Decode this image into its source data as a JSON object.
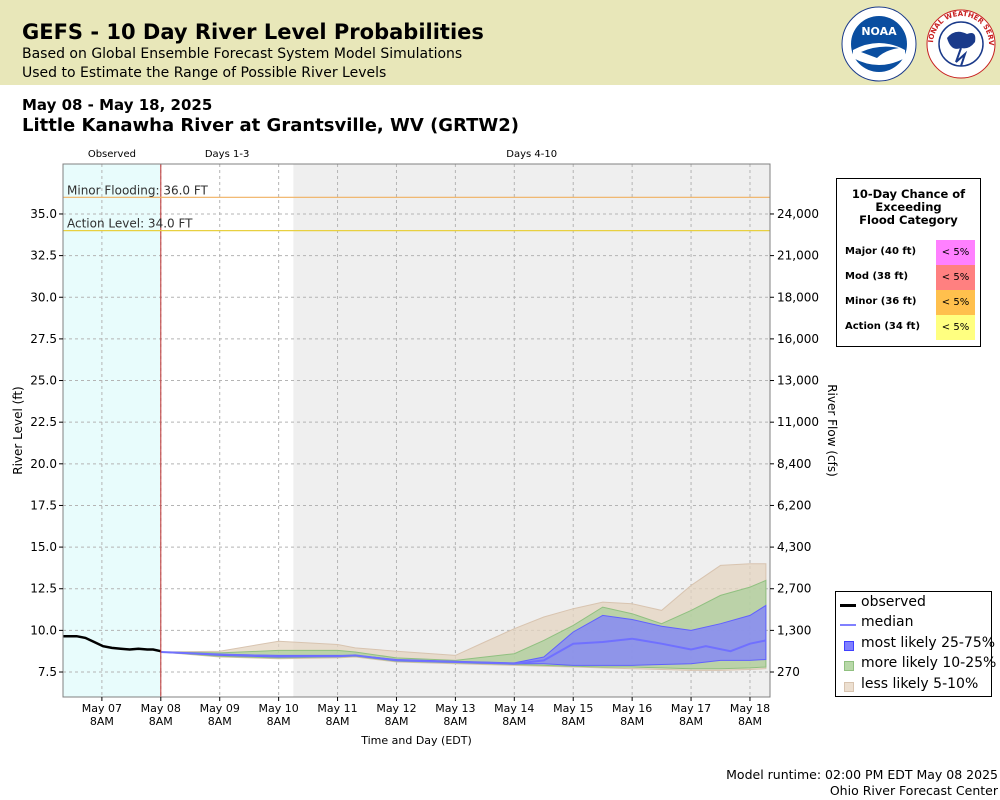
{
  "header": {
    "title": "GEFS - 10 Day River Level Probabilities",
    "subtitle1": "Based on Global Ensemble Forecast System Model Simulations",
    "subtitle2": "Used to Estimate the Range of Possible River Levels",
    "noaa_logo_text": "NOAA",
    "nws_logo_text": "NATIONAL WEATHER SERVICE"
  },
  "date_range": "May 08 - May 18, 2025",
  "station": "Little Kanawha River at Grantsville, WV (GRTW2)",
  "footer": {
    "runtime": "Model runtime: 02:00 PM EDT May 08 2025",
    "center": "Ohio River Forecast Center"
  },
  "flood_table": {
    "title": "10-Day Chance of\nExceeding\nFlood Category",
    "rows": [
      {
        "label": "Major (40 ft)",
        "value": "< 5%",
        "color": "#ff80ff"
      },
      {
        "label": "Mod (38 ft)",
        "value": "< 5%",
        "color": "#ff8080"
      },
      {
        "label": "Minor (36 ft)",
        "value": "< 5%",
        "color": "#ffc04d"
      },
      {
        "label": "Action (34 ft)",
        "value": "< 5%",
        "color": "#ffff80"
      }
    ]
  },
  "legend": [
    {
      "label": "observed",
      "type": "line",
      "color": "#000000"
    },
    {
      "label": "median",
      "type": "line",
      "color": "#8080ff"
    },
    {
      "label": "most likely 25-75%",
      "type": "box",
      "color": "#8080ff",
      "border": "#4040ff"
    },
    {
      "label": "more likely 10-25%",
      "type": "box",
      "color": "#b8d8a8",
      "border": "#90c080"
    },
    {
      "label": "less likely 5-10%",
      "type": "box",
      "color": "#ecdfd0",
      "border": "#d8c4b0"
    }
  ],
  "chart_data": {
    "type": "area",
    "xlabel": "Time and Day (EDT)",
    "ylabel": "River Level (ft)",
    "y2label": "River Flow (cfs)",
    "x_unit": "days after May 07 00:00 EDT",
    "xlim": [
      -0.33,
      11.67
    ],
    "ylim": [
      6.0,
      38.0
    ],
    "grid": true,
    "legend_position": "bottom-right",
    "forecast_start": 1.33,
    "days_4_10_start": 3.58,
    "regions": [
      {
        "label": "Observed",
        "from": -0.33,
        "to": 1.33,
        "color": "#e8fcfc"
      },
      {
        "label": "Days 1-3",
        "from": 1.33,
        "to": 3.58,
        "color": "#ffffff"
      },
      {
        "label": "Days 4-10",
        "from": 3.58,
        "to": 11.67,
        "color": "#efefef"
      }
    ],
    "thresholds": [
      {
        "label": "Minor Flooding: 36.0 FT",
        "value": 36.0,
        "color": "#f0b060"
      },
      {
        "label": "Action Level: 34.0 FT",
        "value": 34.0,
        "color": "#e8d040"
      }
    ],
    "yticks": [
      7.5,
      10.0,
      12.5,
      15.0,
      17.5,
      20.0,
      22.5,
      25.0,
      27.5,
      30.0,
      32.5,
      35.0
    ],
    "ytick_labels": [
      "7.5",
      "10.0",
      "12.5",
      "15.0",
      "17.5",
      "20.0",
      "22.5",
      "25.0",
      "27.5",
      "30.0",
      "32.5",
      "35.0"
    ],
    "y2ticks": [
      {
        "stage": 7.5,
        "label": "270"
      },
      {
        "stage": 10.0,
        "label": "1,300"
      },
      {
        "stage": 12.5,
        "label": "2,700"
      },
      {
        "stage": 15.0,
        "label": "4,300"
      },
      {
        "stage": 17.5,
        "label": "6,200"
      },
      {
        "stage": 20.0,
        "label": "8,400"
      },
      {
        "stage": 22.5,
        "label": "11,000"
      },
      {
        "stage": 25.0,
        "label": "13,000"
      },
      {
        "stage": 27.5,
        "label": "16,000"
      },
      {
        "stage": 30.0,
        "label": "18,000"
      },
      {
        "stage": 32.5,
        "label": "21,000"
      },
      {
        "stage": 35.0,
        "label": "24,000"
      }
    ],
    "xticks": [
      {
        "x": 0.33,
        "day": "May 07",
        "time": "8AM"
      },
      {
        "x": 1.33,
        "day": "May 08",
        "time": "8AM"
      },
      {
        "x": 2.33,
        "day": "May 09",
        "time": "8AM"
      },
      {
        "x": 3.33,
        "day": "May 10",
        "time": "8AM"
      },
      {
        "x": 4.33,
        "day": "May 11",
        "time": "8AM"
      },
      {
        "x": 5.33,
        "day": "May 12",
        "time": "8AM"
      },
      {
        "x": 6.33,
        "day": "May 13",
        "time": "8AM"
      },
      {
        "x": 7.33,
        "day": "May 14",
        "time": "8AM"
      },
      {
        "x": 8.33,
        "day": "May 15",
        "time": "8AM"
      },
      {
        "x": 9.33,
        "day": "May 16",
        "time": "8AM"
      },
      {
        "x": 10.33,
        "day": "May 17",
        "time": "8AM"
      },
      {
        "x": 11.33,
        "day": "May 18",
        "time": "8AM"
      }
    ],
    "observed": [
      [
        -0.33,
        9.65
      ],
      [
        -0.1,
        9.65
      ],
      [
        0.05,
        9.55
      ],
      [
        0.2,
        9.3
      ],
      [
        0.35,
        9.05
      ],
      [
        0.5,
        8.95
      ],
      [
        0.65,
        8.9
      ],
      [
        0.8,
        8.85
      ],
      [
        0.95,
        8.9
      ],
      [
        1.1,
        8.85
      ],
      [
        1.2,
        8.85
      ],
      [
        1.33,
        8.75
      ]
    ],
    "median": [
      [
        1.33,
        8.7
      ],
      [
        2.33,
        8.55
      ],
      [
        3.33,
        8.45
      ],
      [
        4.33,
        8.45
      ],
      [
        4.63,
        8.5
      ],
      [
        5.33,
        8.2
      ],
      [
        6.33,
        8.1
      ],
      [
        7.33,
        8.0
      ],
      [
        7.83,
        8.2
      ],
      [
        8.33,
        9.2
      ],
      [
        8.83,
        9.3
      ],
      [
        9.33,
        9.5
      ],
      [
        9.83,
        9.2
      ],
      [
        10.33,
        8.85
      ],
      [
        10.58,
        9.05
      ],
      [
        11.0,
        8.75
      ],
      [
        11.33,
        9.2
      ],
      [
        11.6,
        9.4
      ]
    ],
    "band_25_75": {
      "lower": [
        [
          1.33,
          8.7
        ],
        [
          2.33,
          8.5
        ],
        [
          3.33,
          8.4
        ],
        [
          4.33,
          8.45
        ],
        [
          4.63,
          8.5
        ],
        [
          5.33,
          8.2
        ],
        [
          6.33,
          8.1
        ],
        [
          7.33,
          8.0
        ],
        [
          7.83,
          8.0
        ],
        [
          8.33,
          7.9
        ],
        [
          8.83,
          7.9
        ],
        [
          9.33,
          7.9
        ],
        [
          9.83,
          7.95
        ],
        [
          10.33,
          8.0
        ],
        [
          10.83,
          8.2
        ],
        [
          11.33,
          8.2
        ],
        [
          11.6,
          8.25
        ]
      ],
      "upper": [
        [
          1.33,
          8.7
        ],
        [
          2.33,
          8.55
        ],
        [
          3.33,
          8.5
        ],
        [
          4.33,
          8.5
        ],
        [
          4.63,
          8.5
        ],
        [
          5.33,
          8.25
        ],
        [
          6.33,
          8.15
        ],
        [
          7.33,
          8.05
        ],
        [
          7.83,
          8.4
        ],
        [
          8.33,
          9.9
        ],
        [
          8.83,
          10.9
        ],
        [
          9.33,
          10.65
        ],
        [
          9.83,
          10.25
        ],
        [
          10.33,
          10.0
        ],
        [
          10.83,
          10.4
        ],
        [
          11.33,
          10.9
        ],
        [
          11.6,
          11.5
        ]
      ]
    },
    "band_10_25": {
      "lower": [
        [
          1.33,
          8.7
        ],
        [
          2.33,
          8.45
        ],
        [
          3.33,
          8.35
        ],
        [
          4.33,
          8.4
        ],
        [
          4.63,
          8.45
        ],
        [
          5.33,
          8.15
        ],
        [
          6.33,
          8.05
        ],
        [
          7.33,
          7.95
        ],
        [
          7.83,
          7.9
        ],
        [
          8.33,
          7.85
        ],
        [
          8.83,
          7.8
        ],
        [
          9.33,
          7.8
        ],
        [
          9.83,
          7.75
        ],
        [
          10.33,
          7.7
        ],
        [
          10.83,
          7.7
        ],
        [
          11.33,
          7.75
        ],
        [
          11.6,
          7.8
        ]
      ],
      "upper": [
        [
          1.33,
          8.7
        ],
        [
          2.33,
          8.65
        ],
        [
          3.33,
          8.8
        ],
        [
          4.33,
          8.8
        ],
        [
          4.63,
          8.7
        ],
        [
          5.33,
          8.35
        ],
        [
          6.33,
          8.2
        ],
        [
          7.33,
          8.6
        ],
        [
          7.83,
          9.4
        ],
        [
          8.33,
          10.3
        ],
        [
          8.83,
          11.4
        ],
        [
          9.33,
          11.0
        ],
        [
          9.83,
          10.4
        ],
        [
          10.33,
          11.2
        ],
        [
          10.83,
          12.1
        ],
        [
          11.33,
          12.6
        ],
        [
          11.6,
          13.0
        ]
      ]
    },
    "band_5_10": {
      "lower": [
        [
          1.33,
          8.7
        ],
        [
          2.33,
          8.4
        ],
        [
          3.33,
          8.3
        ],
        [
          4.33,
          8.35
        ],
        [
          4.63,
          8.4
        ],
        [
          5.33,
          8.1
        ],
        [
          6.33,
          8.0
        ],
        [
          7.33,
          7.9
        ],
        [
          7.83,
          7.85
        ],
        [
          8.33,
          7.8
        ],
        [
          8.83,
          7.75
        ],
        [
          9.33,
          7.7
        ],
        [
          9.83,
          7.65
        ],
        [
          10.33,
          7.6
        ],
        [
          10.83,
          7.6
        ],
        [
          11.33,
          7.65
        ],
        [
          11.6,
          7.7
        ]
      ],
      "upper": [
        [
          1.33,
          8.7
        ],
        [
          2.33,
          8.75
        ],
        [
          3.33,
          9.35
        ],
        [
          4.33,
          9.15
        ],
        [
          4.63,
          8.95
        ],
        [
          5.33,
          8.75
        ],
        [
          6.33,
          8.5
        ],
        [
          6.83,
          9.3
        ],
        [
          7.33,
          10.1
        ],
        [
          7.83,
          10.8
        ],
        [
          8.33,
          11.3
        ],
        [
          8.83,
          11.7
        ],
        [
          9.33,
          11.6
        ],
        [
          9.83,
          11.2
        ],
        [
          10.33,
          12.7
        ],
        [
          10.83,
          13.9
        ],
        [
          11.33,
          14.0
        ],
        [
          11.6,
          14.0
        ]
      ]
    }
  }
}
